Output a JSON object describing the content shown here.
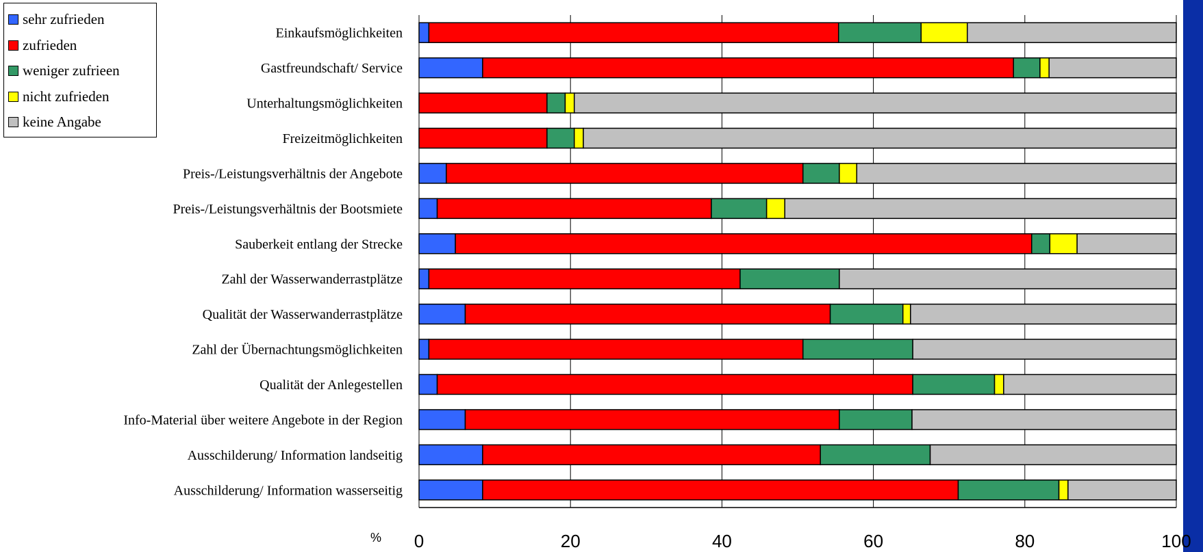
{
  "colors": {
    "background_frame": "#0a2ea6",
    "sehr_zufrieden": "#3366ff",
    "zufrieden": "#ff0000",
    "weniger_zufrieden": "#339966",
    "nicht_zufrieden": "#ffff00",
    "keine_angabe": "#c0c0c0"
  },
  "chart_data": {
    "type": "bar",
    "orientation": "horizontal",
    "stacked": true,
    "xunit": "%",
    "xlim": [
      0,
      100
    ],
    "xticks": [
      "0",
      "20",
      "40",
      "60",
      "80",
      "100"
    ],
    "grid": true,
    "legend_position": "top-left",
    "categories": [
      "Einkaufsmöglichkeiten",
      "Gastfreundschaft/ Service",
      "Unterhaltungsmöglichkeiten",
      "Freizeitmöglichkeiten",
      "Preis-/Leistungsverhältnis der Angebote",
      "Preis-/Leistungsverhältnis der Bootsmiete",
      "Sauberkeit entlang der Strecke",
      "Zahl der Wasserwanderrastplätze",
      "Qualität der Wasserwanderrastplätze",
      "Zahl der Übernachtungsmöglichkeiten",
      "Qualität der Anlegestellen",
      "Info-Material über weitere Angebote in der Region",
      "Ausschilderung/ Information landseitig",
      "Ausschilderung/ Information wasserseitig"
    ],
    "series": [
      {
        "name": "sehr zufrieden",
        "color": "#3366ff",
        "values": [
          1.3,
          8.4,
          0,
          0,
          3.6,
          2.4,
          4.8,
          1.3,
          6.1,
          1.3,
          2.4,
          6.1,
          8.4,
          8.4
        ]
      },
      {
        "name": "zufrieden",
        "color": "#ff0000",
        "values": [
          54.1,
          70.1,
          16.9,
          16.9,
          47.1,
          36.2,
          76.1,
          41.1,
          48.2,
          49.4,
          62.8,
          49.4,
          44.6,
          62.8
        ]
      },
      {
        "name": "weniger zufrieen",
        "color": "#339966",
        "values": [
          10.9,
          3.5,
          2.4,
          3.6,
          4.8,
          7.3,
          2.4,
          13.1,
          9.6,
          14.5,
          10.8,
          9.6,
          14.5,
          13.3
        ]
      },
      {
        "name": "nicht zufrieden",
        "color": "#ffff00",
        "values": [
          6.1,
          1.2,
          1.2,
          1.2,
          2.3,
          2.4,
          3.6,
          0,
          1.0,
          0,
          1.2,
          0,
          0,
          1.2
        ]
      },
      {
        "name": "keine Angabe",
        "color": "#c0c0c0",
        "values": [
          27.6,
          16.8,
          79.5,
          78.3,
          42.2,
          51.7,
          13.1,
          44.5,
          35.1,
          34.8,
          22.8,
          34.9,
          32.5,
          14.3
        ]
      }
    ]
  }
}
